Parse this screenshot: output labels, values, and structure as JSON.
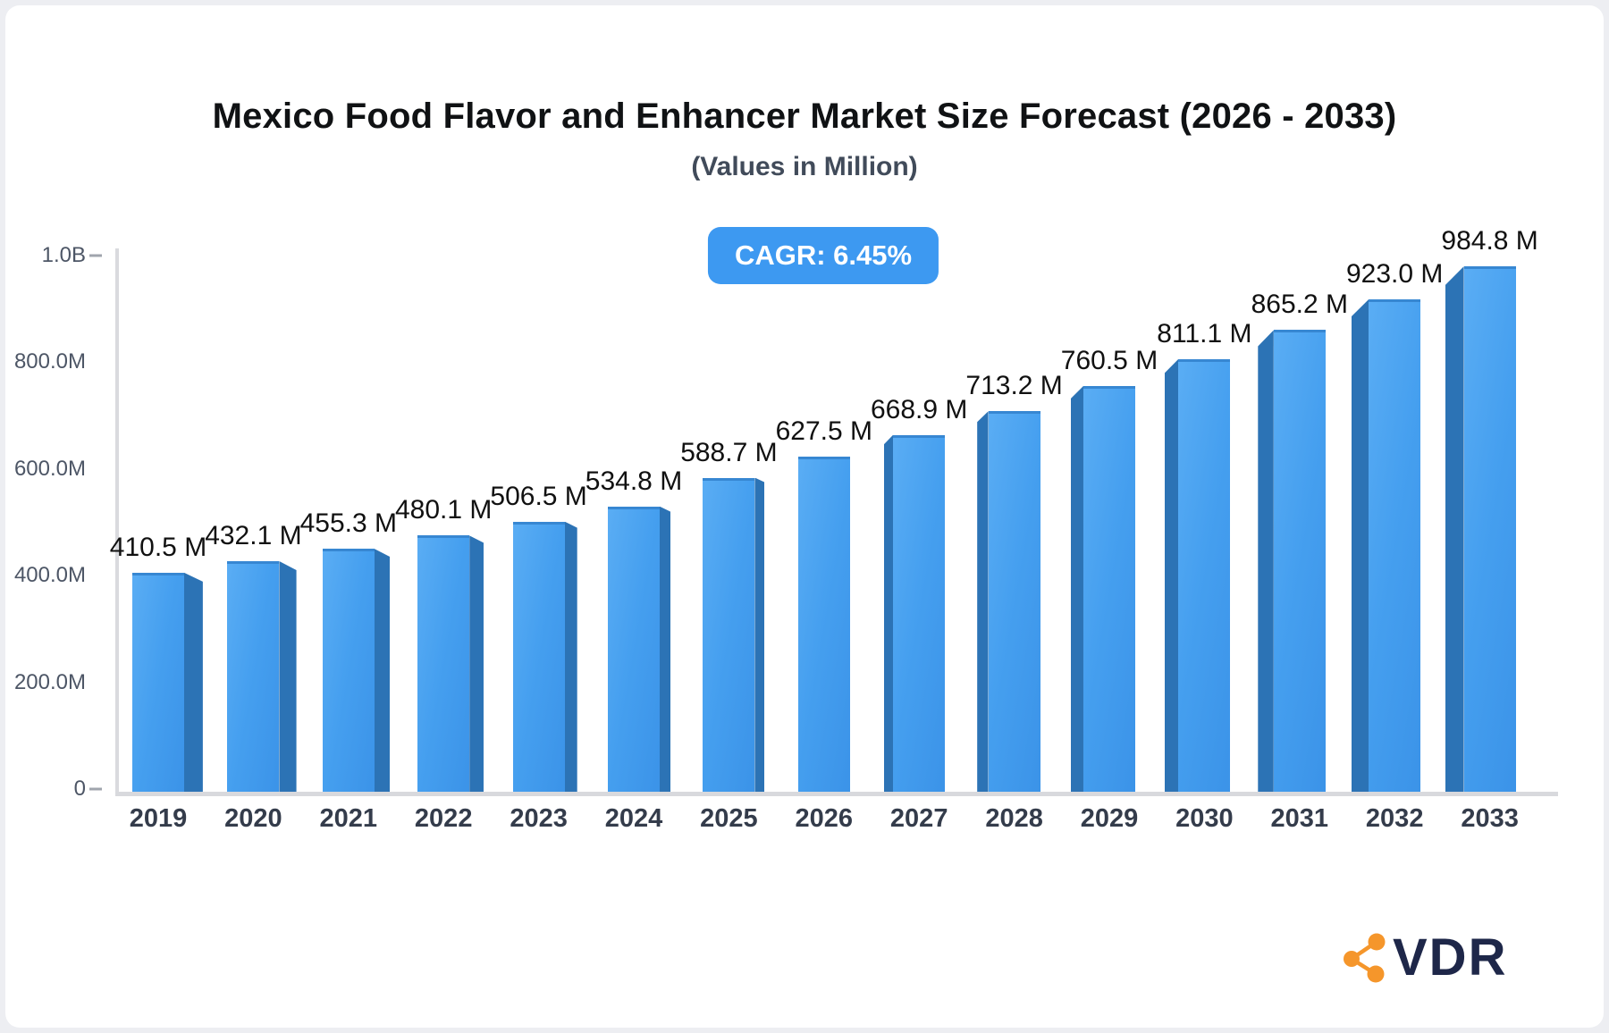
{
  "title": "Mexico Food Flavor and Enhancer Market Size Forecast (2026 - 2033)",
  "subtitle": "(Values in Million)",
  "cagr_badge": "CAGR: 6.45%",
  "logo": {
    "text": "VDR"
  },
  "colors": {
    "bar_front": "#459fef",
    "bar_front_light": "#5aadf4",
    "bar_front_dark": "#3b93e8",
    "bar_side": "#2c73b5",
    "bar_top_edge": "#3787d2",
    "badge_bg": "#3d99f1",
    "badge_text": "#ffffff",
    "axis_line": "#d8dade",
    "axis_tick_text": "#4d5666",
    "year_text": "#343c4b",
    "value_text": "#111111",
    "logo_orange": "#f5962b",
    "logo_navy": "#1e2749"
  },
  "chart_data": {
    "type": "bar",
    "title": "Mexico Food Flavor and Enhancer Market Size Forecast (2026 - 2033)",
    "subtitle": "(Values in Million)",
    "cagr": "6.45%",
    "categories": [
      "2019",
      "2020",
      "2021",
      "2022",
      "2023",
      "2024",
      "2025",
      "2026",
      "2027",
      "2028",
      "2029",
      "2030",
      "2031",
      "2032",
      "2033"
    ],
    "values": [
      410.5,
      432.1,
      455.3,
      480.1,
      506.5,
      534.8,
      588.7,
      627.5,
      668.9,
      713.2,
      760.5,
      811.1,
      865.2,
      923.0,
      984.8
    ],
    "value_labels": [
      "410.5 M",
      "432.1 M",
      "455.3 M",
      "480.1 M",
      "506.5 M",
      "534.8 M",
      "588.7 M",
      "627.5 M",
      "668.9 M",
      "713.2 M",
      "760.5 M",
      "811.1 M",
      "865.2 M",
      "923.0 M",
      "984.8 M"
    ],
    "y_axis_ticks": [
      "1.0B",
      "800.0M",
      "600.0M",
      "400.0M",
      "200.0M",
      "0"
    ],
    "ylim": [
      0,
      1000
    ],
    "grid": false,
    "legend": false,
    "bar_style": "3d-perspective"
  }
}
